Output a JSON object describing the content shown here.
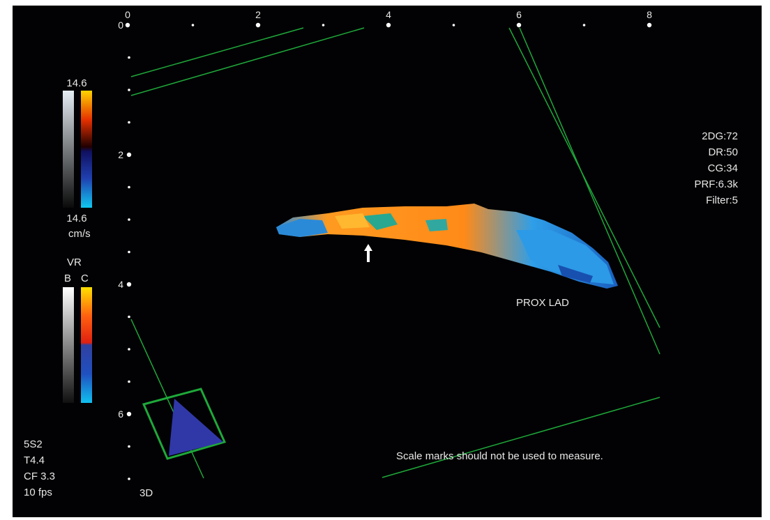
{
  "top_scale": {
    "labels": [
      "0",
      "2",
      "4",
      "6",
      "8"
    ]
  },
  "left_scale": {
    "labels": [
      "0",
      "2",
      "4",
      "6"
    ]
  },
  "color_scale": {
    "max": "14.6",
    "min": "14.6",
    "unit": "cm/s"
  },
  "vr_scale": {
    "title": "VR",
    "b": "B",
    "c": "C"
  },
  "settings": [
    "2DG:72",
    "DR:50",
    "CG:34",
    "PRF:6.3k",
    "Filter:5"
  ],
  "probe_info": [
    "5S2",
    "T4.4",
    "CF 3.3",
    "10 fps"
  ],
  "vessel_label": "PROX LAD",
  "mode_label": "3D",
  "disclaimer": "Scale marks should not be used to measure."
}
